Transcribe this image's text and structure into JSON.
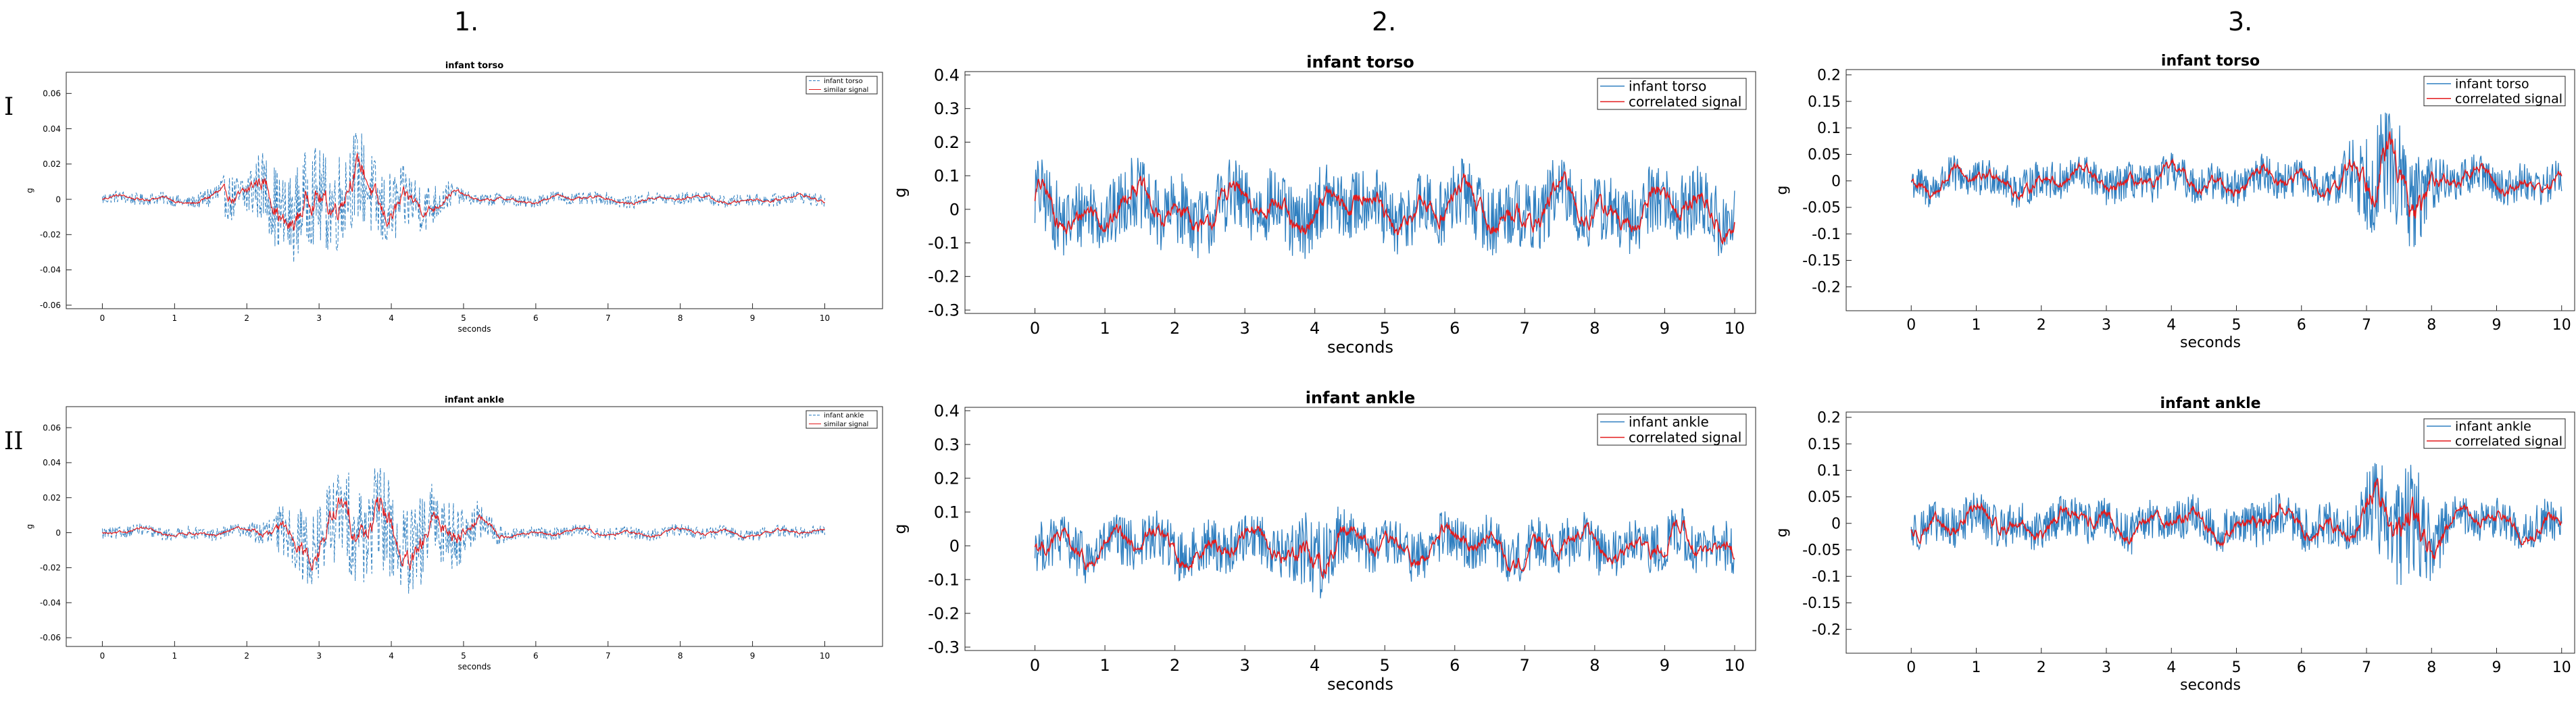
{
  "column_headers": [
    "1.",
    "2.",
    "3."
  ],
  "row_headers": [
    "I",
    "II"
  ],
  "colors": {
    "measured": "#2f7fc0",
    "fitted": "#e31a1c",
    "axis": "#262626"
  },
  "chart_data": [
    {
      "id": "p1a",
      "type": "line",
      "title": "infant torso",
      "xlabel": "seconds",
      "ylabel": "g",
      "xlim": [
        -0.5,
        10.8
      ],
      "ylim": [
        -0.062,
        0.072
      ],
      "xticks": [
        0,
        1,
        2,
        3,
        4,
        5,
        6,
        7,
        8,
        9,
        10
      ],
      "yticks": [
        -0.06,
        -0.04,
        -0.02,
        0,
        0.02,
        0.04,
        0.06
      ],
      "ytick_labels": [
        "-0.06",
        "-0.04",
        "-0.02",
        "0",
        "0.02",
        "0.04",
        "0.06"
      ],
      "legend": "top-right",
      "grid": false,
      "series": [
        {
          "name": "infant torso",
          "role": "measured",
          "dashed": true
        },
        {
          "name": "similar signal",
          "role": "fitted",
          "dashed": false
        }
      ],
      "profile": {
        "burst_start": 1.3,
        "burst_end": 5.0,
        "base_amp": 0.004,
        "burst_amp": 0.028,
        "red_ratio": 0.35
      }
    },
    {
      "id": "p2a",
      "type": "line",
      "title": "infant torso",
      "xlabel": "seconds",
      "ylabel": "g",
      "xlim": [
        -1.0,
        10.3
      ],
      "ylim": [
        -0.31,
        0.41
      ],
      "xticks": [
        0,
        1,
        2,
        3,
        4,
        5,
        6,
        7,
        8,
        9,
        10
      ],
      "yticks": [
        -0.3,
        -0.2,
        -0.1,
        0,
        0.1,
        0.2,
        0.3,
        0.4
      ],
      "ytick_labels": [
        "-0.3",
        "-0.2",
        "-0.1",
        "0",
        "0.1",
        "0.2",
        "0.3",
        "0.4"
      ],
      "legend": "top-right",
      "grid": false,
      "series": [
        {
          "name": "infant torso",
          "role": "measured",
          "dashed": false
        },
        {
          "name": "correlated signal",
          "role": "fitted",
          "dashed": false
        }
      ],
      "profile": {
        "burst_start": 0,
        "burst_end": 0,
        "base_amp": 0.12,
        "burst_amp": 0.12,
        "red_ratio": 0.38
      }
    },
    {
      "id": "p3a",
      "type": "line",
      "title": "infant torso",
      "xlabel": "seconds",
      "ylabel": "g",
      "xlim": [
        -1.0,
        10.2
      ],
      "ylim": [
        -0.245,
        0.21
      ],
      "xticks": [
        0,
        1,
        2,
        3,
        4,
        5,
        6,
        7,
        8,
        9,
        10
      ],
      "yticks": [
        -0.2,
        -0.15,
        -0.1,
        -0.05,
        0,
        0.05,
        0.1,
        0.15,
        0.2
      ],
      "ytick_labels": [
        "-0.2",
        "-0.15",
        "-0.1",
        "-0.05",
        "0",
        "0.05",
        "0.1",
        "0.15",
        "0.2"
      ],
      "legend": "top-right",
      "grid": false,
      "series": [
        {
          "name": "infant torso",
          "role": "measured",
          "dashed": false
        },
        {
          "name": "correlated signal",
          "role": "fitted",
          "dashed": false
        }
      ],
      "profile": {
        "burst_start": 6.5,
        "burst_end": 8.2,
        "base_amp": 0.04,
        "burst_amp": 0.11,
        "red_ratio": 0.4
      }
    },
    {
      "id": "p1b",
      "type": "line",
      "title": "infant ankle",
      "xlabel": "seconds",
      "ylabel": "g",
      "xlim": [
        -0.5,
        10.8
      ],
      "ylim": [
        -0.065,
        0.072
      ],
      "xticks": [
        0,
        1,
        2,
        3,
        4,
        5,
        6,
        7,
        8,
        9,
        10
      ],
      "yticks": [
        -0.06,
        -0.04,
        -0.02,
        0,
        0.02,
        0.04,
        0.06
      ],
      "ytick_labels": [
        "-0.06",
        "-0.04",
        "-0.02",
        "0",
        "0.02",
        "0.04",
        "0.06"
      ],
      "legend": "top-right",
      "grid": false,
      "series": [
        {
          "name": "infant ankle",
          "role": "measured",
          "dashed": true
        },
        {
          "name": "similar signal",
          "role": "fitted",
          "dashed": false
        }
      ],
      "profile": {
        "burst_start": 2.0,
        "burst_end": 5.6,
        "base_amp": 0.004,
        "burst_amp": 0.03,
        "red_ratio": 0.35
      }
    },
    {
      "id": "p2b",
      "type": "line",
      "title": "infant ankle",
      "xlabel": "seconds",
      "ylabel": "g",
      "xlim": [
        -1.0,
        10.3
      ],
      "ylim": [
        -0.31,
        0.41
      ],
      "xticks": [
        0,
        1,
        2,
        3,
        4,
        5,
        6,
        7,
        8,
        9,
        10
      ],
      "yticks": [
        -0.3,
        -0.2,
        -0.1,
        0,
        0.1,
        0.2,
        0.3,
        0.4
      ],
      "ytick_labels": [
        "-0.3",
        "-0.2",
        "-0.1",
        "0",
        "0.1",
        "0.2",
        "0.3",
        "0.4"
      ],
      "legend": "top-right",
      "grid": false,
      "series": [
        {
          "name": "infant ankle",
          "role": "measured",
          "dashed": false
        },
        {
          "name": "correlated signal",
          "role": "fitted",
          "dashed": false
        }
      ],
      "profile": {
        "burst_start": 3.5,
        "burst_end": 4.5,
        "base_amp": 0.085,
        "burst_amp": 0.13,
        "red_ratio": 0.42
      }
    },
    {
      "id": "p3b",
      "type": "line",
      "title": "infant ankle",
      "xlabel": "seconds",
      "ylabel": "g",
      "xlim": [
        -1.0,
        10.2
      ],
      "ylim": [
        -0.245,
        0.21
      ],
      "xticks": [
        0,
        1,
        2,
        3,
        4,
        5,
        6,
        7,
        8,
        9,
        10
      ],
      "yticks": [
        -0.2,
        -0.15,
        -0.1,
        -0.05,
        0,
        0.05,
        0.1,
        0.15,
        0.2
      ],
      "ytick_labels": [
        "-0.2",
        "-0.15",
        "-0.1",
        "-0.05",
        "0",
        "0.05",
        "0.1",
        "0.15",
        "0.2"
      ],
      "legend": "top-right",
      "grid": false,
      "series": [
        {
          "name": "infant ankle",
          "role": "measured",
          "dashed": false
        },
        {
          "name": "correlated signal",
          "role": "fitted",
          "dashed": false
        }
      ],
      "profile": {
        "burst_start": 6.8,
        "burst_end": 8.3,
        "base_amp": 0.045,
        "burst_amp": 0.11,
        "red_ratio": 0.42
      }
    }
  ]
}
